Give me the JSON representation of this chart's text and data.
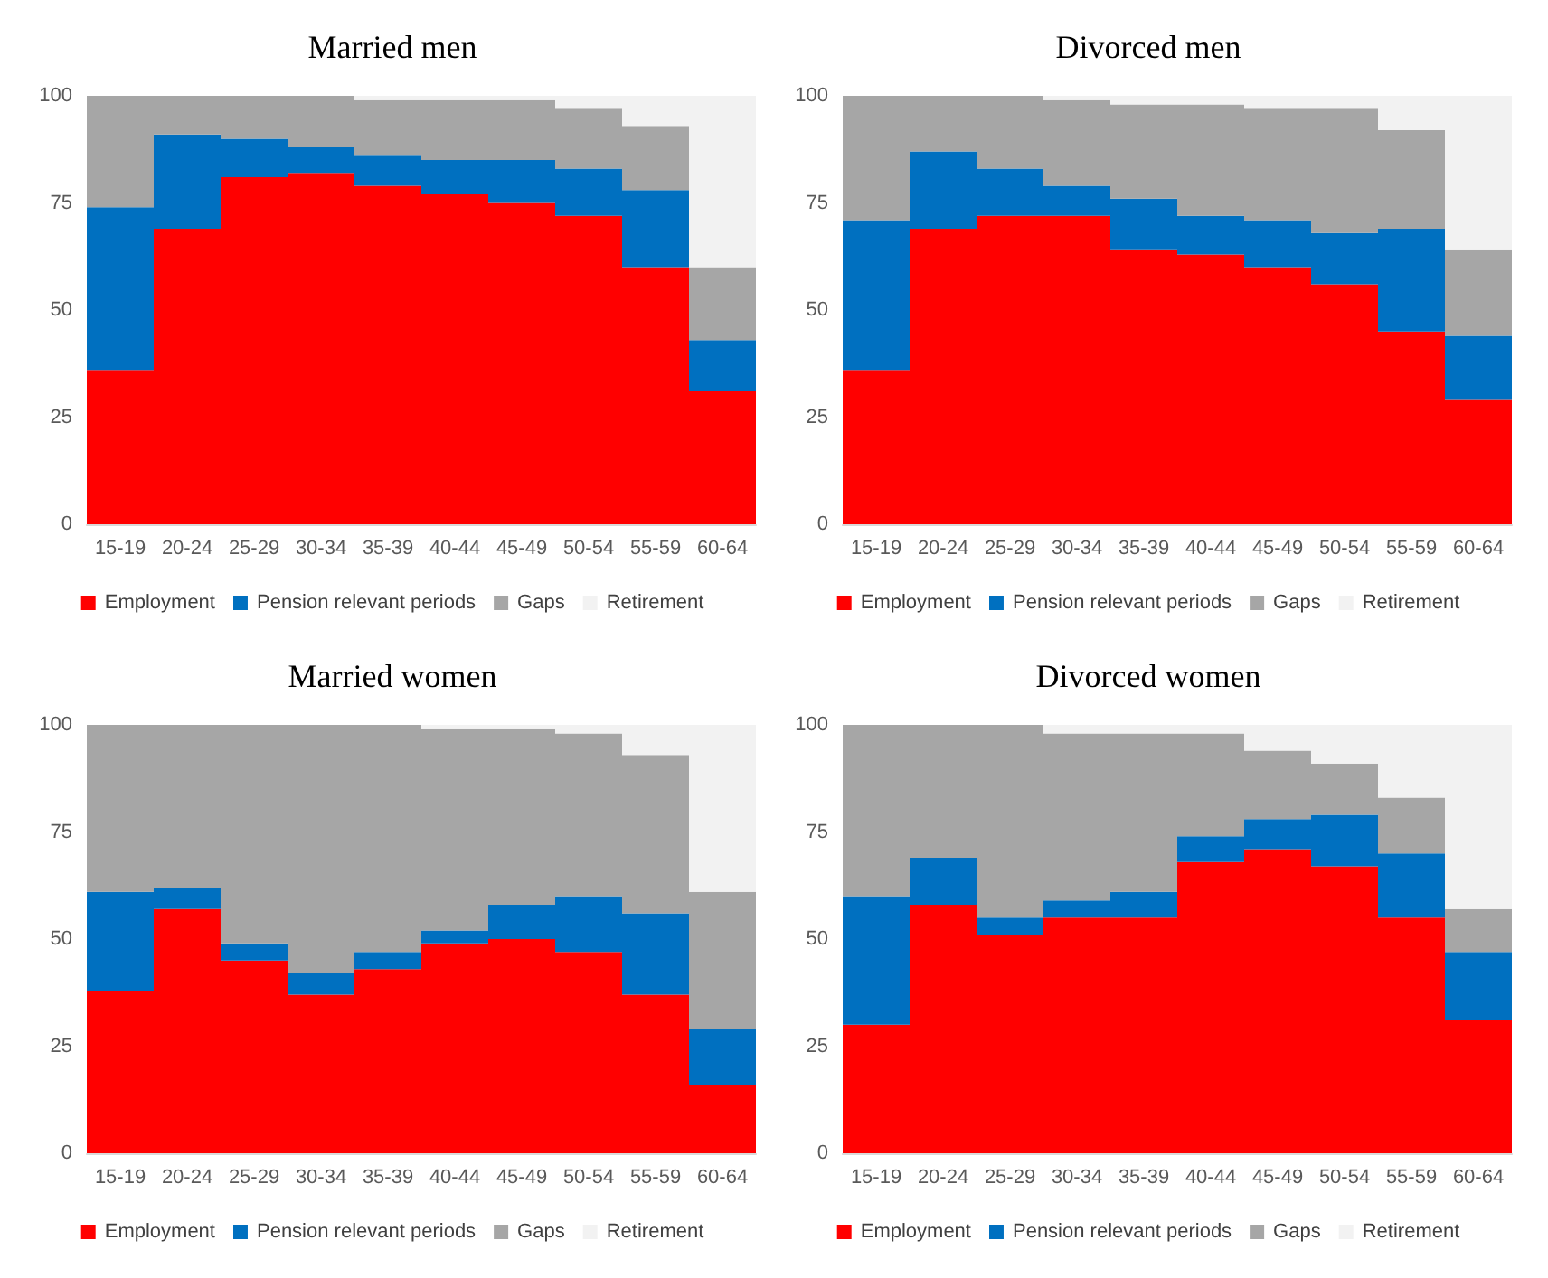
{
  "chart_data": [
    {
      "type": "bar",
      "title": "Married men",
      "categories": [
        "15-19",
        "20-24",
        "25-29",
        "30-34",
        "35-39",
        "40-44",
        "45-49",
        "50-54",
        "55-59",
        "60-64"
      ],
      "stacked": true,
      "ylim": [
        0,
        100
      ],
      "yticks": [
        0,
        25,
        50,
        75,
        100
      ],
      "legend": "bottom",
      "series": [
        {
          "name": "Employment",
          "color": "#ff0000",
          "values": [
            36,
            69,
            81,
            82,
            79,
            77,
            75,
            72,
            60,
            31
          ]
        },
        {
          "name": "Pension relevant periods",
          "color": "#0070c0",
          "values": [
            38,
            22,
            9,
            6,
            7,
            8,
            10,
            11,
            18,
            12
          ]
        },
        {
          "name": "Gaps",
          "color": "#a6a6a6",
          "values": [
            26,
            9,
            10,
            12,
            13,
            14,
            14,
            14,
            15,
            17
          ]
        },
        {
          "name": "Retirement",
          "color": "#f2f2f2",
          "values": [
            0,
            0,
            0,
            0,
            1,
            1,
            1,
            3,
            7,
            40
          ]
        }
      ]
    },
    {
      "type": "bar",
      "title": "Divorced men",
      "categories": [
        "15-19",
        "20-24",
        "25-29",
        "30-34",
        "35-39",
        "40-44",
        "45-49",
        "50-54",
        "55-59",
        "60-64"
      ],
      "stacked": true,
      "ylim": [
        0,
        100
      ],
      "yticks": [
        0,
        25,
        50,
        75,
        100
      ],
      "legend": "bottom",
      "series": [
        {
          "name": "Employment",
          "color": "#ff0000",
          "values": [
            36,
            69,
            72,
            72,
            64,
            63,
            60,
            56,
            45,
            29
          ]
        },
        {
          "name": "Pension relevant periods",
          "color": "#0070c0",
          "values": [
            35,
            18,
            11,
            7,
            12,
            9,
            11,
            12,
            24,
            15
          ]
        },
        {
          "name": "Gaps",
          "color": "#a6a6a6",
          "values": [
            29,
            13,
            17,
            20,
            22,
            26,
            26,
            29,
            23,
            20
          ]
        },
        {
          "name": "Retirement",
          "color": "#f2f2f2",
          "values": [
            0,
            0,
            0,
            1,
            2,
            2,
            3,
            3,
            8,
            36
          ]
        }
      ]
    },
    {
      "type": "bar",
      "title": "Married women",
      "categories": [
        "15-19",
        "20-24",
        "25-29",
        "30-34",
        "35-39",
        "40-44",
        "45-49",
        "50-54",
        "55-59",
        "60-64"
      ],
      "stacked": true,
      "ylim": [
        0,
        100
      ],
      "yticks": [
        0,
        25,
        50,
        75,
        100
      ],
      "legend": "bottom",
      "series": [
        {
          "name": "Employment",
          "color": "#ff0000",
          "values": [
            38,
            57,
            45,
            37,
            43,
            49,
            50,
            47,
            37,
            16
          ]
        },
        {
          "name": "Pension relevant periods",
          "color": "#0070c0",
          "values": [
            23,
            5,
            4,
            5,
            4,
            3,
            8,
            13,
            19,
            13
          ]
        },
        {
          "name": "Gaps",
          "color": "#a6a6a6",
          "values": [
            39,
            38,
            51,
            58,
            53,
            47,
            41,
            38,
            37,
            32
          ]
        },
        {
          "name": "Retirement",
          "color": "#f2f2f2",
          "values": [
            0,
            0,
            0,
            0,
            0,
            1,
            1,
            2,
            7,
            39
          ]
        }
      ]
    },
    {
      "type": "bar",
      "title": "Divorced women",
      "categories": [
        "15-19",
        "20-24",
        "25-29",
        "30-34",
        "35-39",
        "40-44",
        "45-49",
        "50-54",
        "55-59",
        "60-64"
      ],
      "stacked": true,
      "ylim": [
        0,
        100
      ],
      "yticks": [
        0,
        25,
        50,
        75,
        100
      ],
      "legend": "bottom",
      "series": [
        {
          "name": "Employment",
          "color": "#ff0000",
          "values": [
            30,
            58,
            51,
            55,
            55,
            68,
            71,
            67,
            55,
            31
          ]
        },
        {
          "name": "Pension relevant periods",
          "color": "#0070c0",
          "values": [
            30,
            11,
            4,
            4,
            6,
            6,
            7,
            12,
            15,
            16
          ]
        },
        {
          "name": "Gaps",
          "color": "#a6a6a6",
          "values": [
            40,
            31,
            45,
            39,
            37,
            24,
            16,
            12,
            13,
            10
          ]
        },
        {
          "name": "Retirement",
          "color": "#f2f2f2",
          "values": [
            0,
            0,
            0,
            2,
            2,
            2,
            6,
            9,
            17,
            43
          ]
        }
      ]
    }
  ]
}
